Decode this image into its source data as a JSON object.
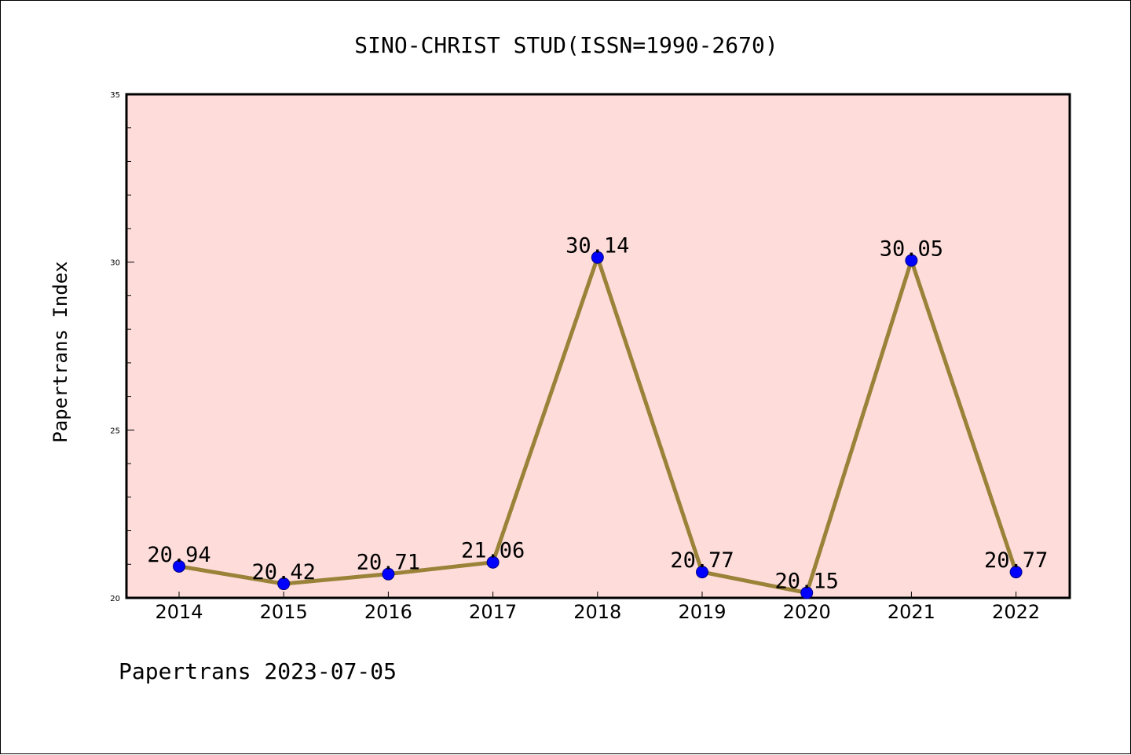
{
  "chart_data": {
    "type": "line",
    "title": "SINO-CHRIST STUD(ISSN=1990-2670)",
    "xlabel": "",
    "ylabel": "Papertrans Index",
    "footer": "Papertrans 2023-07-05",
    "categories": [
      "2014",
      "2015",
      "2016",
      "2017",
      "2018",
      "2019",
      "2020",
      "2021",
      "2022"
    ],
    "series": [
      {
        "values": [
          20.94,
          20.42,
          20.71,
          21.06,
          30.14,
          20.77,
          20.15,
          30.05,
          20.77
        ],
        "data_labels": [
          "20.94",
          "20.42",
          "20.71",
          "21.06",
          "30.14",
          "20.77",
          "20.15",
          "30.05",
          "20.77"
        ]
      }
    ],
    "ylim": [
      20,
      35
    ],
    "yticks": [
      "20",
      "25",
      "30",
      "35"
    ],
    "grid": false,
    "legend": "none",
    "colors": {
      "plot_background": "#FDDCDA",
      "line": "#9A8238",
      "marker": "#0000FF",
      "marker_edge": "#000080"
    }
  }
}
